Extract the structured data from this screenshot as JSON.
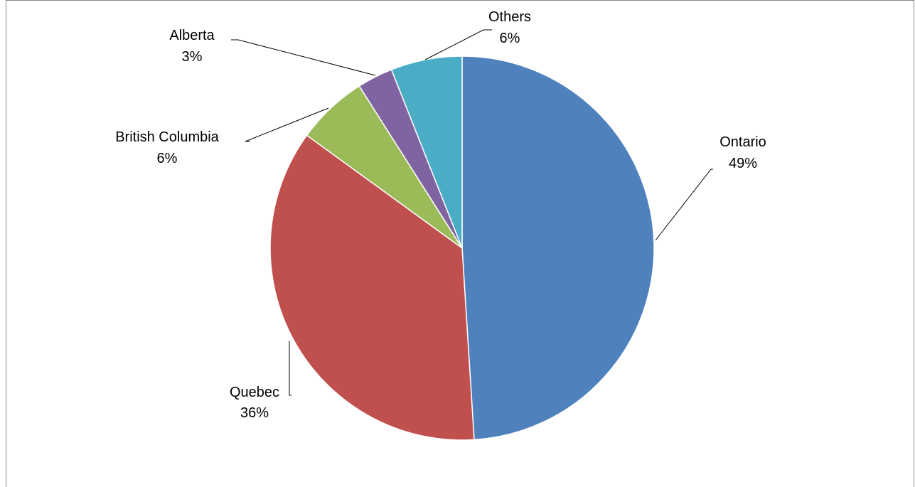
{
  "chart_data": {
    "type": "pie",
    "title": "",
    "slices": [
      {
        "label": "Ontario",
        "value": 49,
        "pct_text": "49%",
        "color": "#4f81bd"
      },
      {
        "label": "Quebec",
        "value": 36,
        "pct_text": "36%",
        "color": "#c0504d"
      },
      {
        "label": "British Columbia",
        "value": 6,
        "pct_text": "6%",
        "color": "#9bbb59"
      },
      {
        "label": "Alberta",
        "value": 3,
        "pct_text": "3%",
        "color": "#8064a2"
      },
      {
        "label": "Others",
        "value": 6,
        "pct_text": "6%",
        "color": "#4bacc6"
      }
    ],
    "legend": "none",
    "start_angle": "12 o'clock",
    "direction": "clockwise"
  }
}
